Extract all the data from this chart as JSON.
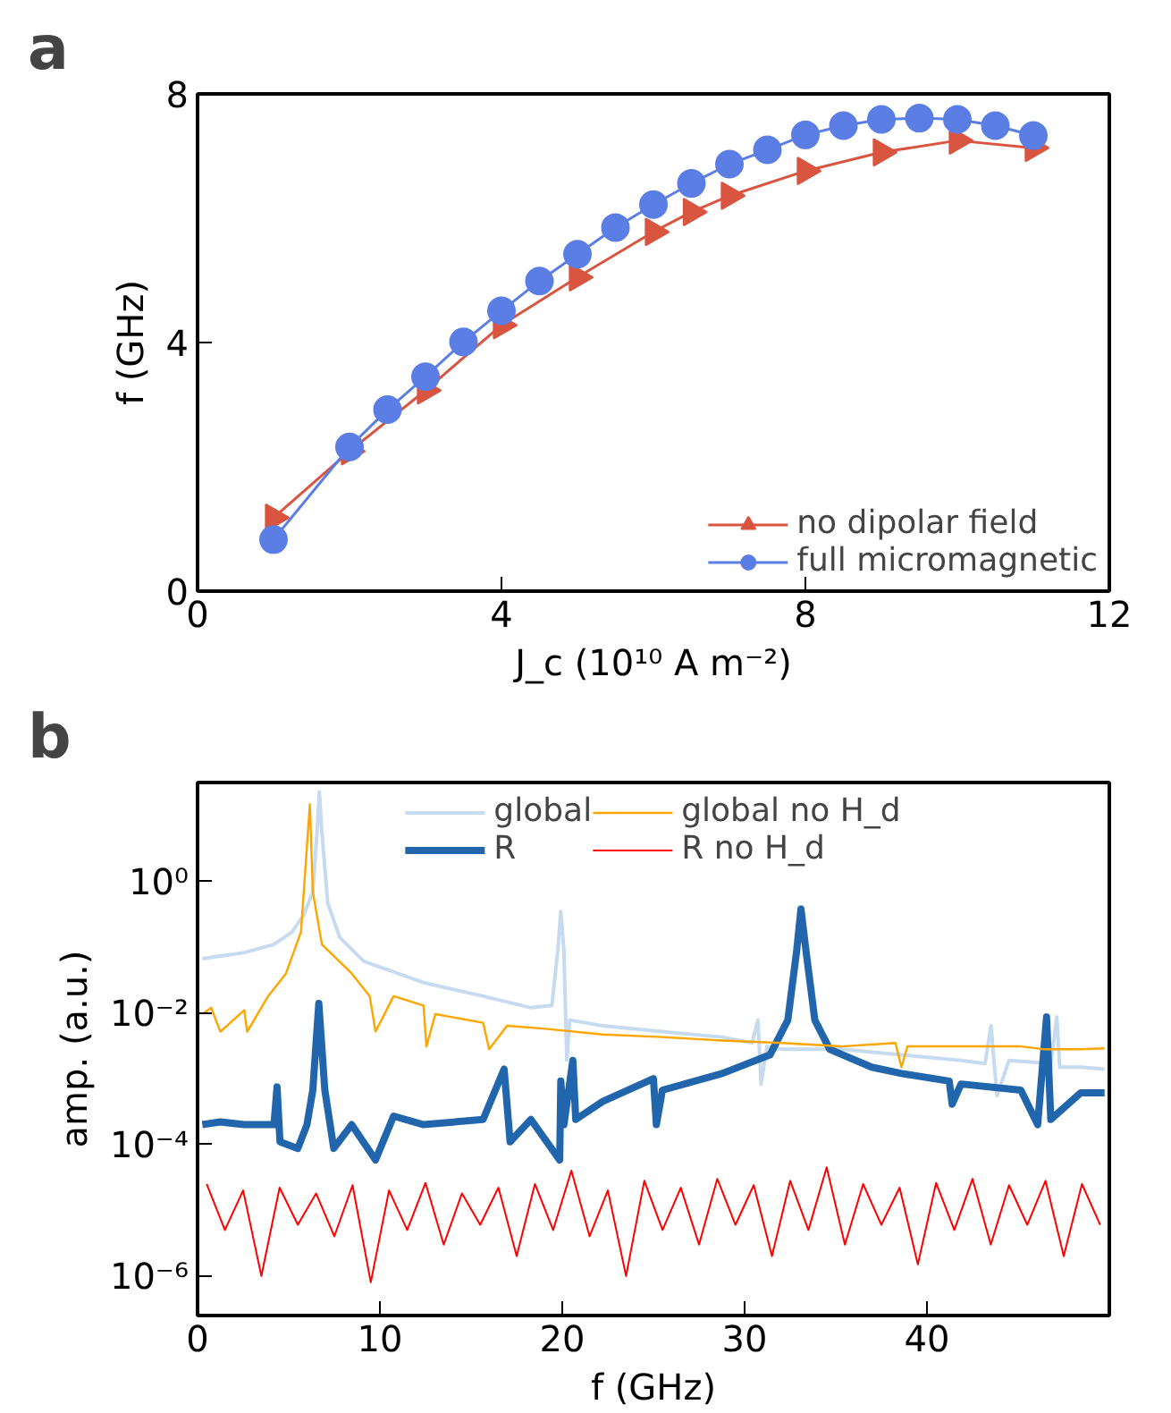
{
  "chart_data": [
    {
      "type": "line",
      "annotations": [
        "a"
      ],
      "xlabel": "J_c (10¹⁰ A m⁻²)",
      "ylabel": "f (GHz)",
      "xlim": [
        0,
        12
      ],
      "ylim": [
        0,
        8
      ],
      "xticks": [
        0,
        4,
        8,
        12
      ],
      "yticks": [
        0,
        4,
        8
      ],
      "grid": false,
      "legend": "bottom right",
      "series": [
        {
          "name": "no dipolar field",
          "color": "#d9553f",
          "marker": "triangle",
          "x": [
            1,
            2,
            3,
            4,
            5,
            6,
            6.5,
            7,
            8,
            9,
            10,
            11
          ],
          "values": [
            1.18,
            2.25,
            3.23,
            4.28,
            5.05,
            5.78,
            6.1,
            6.36,
            6.76,
            7.06,
            7.25,
            7.13
          ]
        },
        {
          "name": "full micromagnetic",
          "color": "#5b7ee5",
          "marker": "circle",
          "x": [
            1,
            2,
            2.5,
            3,
            3.5,
            4,
            4.5,
            5,
            5.5,
            6,
            6.5,
            7,
            7.5,
            8,
            8.5,
            9,
            9.5,
            10,
            10.5,
            11
          ],
          "values": [
            0.83,
            2.32,
            2.92,
            3.45,
            4.01,
            4.51,
            4.99,
            5.42,
            5.85,
            6.22,
            6.56,
            6.87,
            7.1,
            7.34,
            7.49,
            7.59,
            7.61,
            7.59,
            7.49,
            7.33
          ]
        }
      ]
    },
    {
      "type": "line",
      "annotations": [
        "b"
      ],
      "xlabel": "f (GHz)",
      "ylabel": "amp. (a.u.)",
      "log": "y",
      "xlim": [
        0,
        50
      ],
      "ylim": [
        2.5e-07,
        32
      ],
      "xticks": [
        0,
        10,
        20,
        30,
        40
      ],
      "yticks": [
        {
          "value": 1,
          "label": "10⁰"
        },
        {
          "value": 0.01,
          "label": "10⁻²"
        },
        {
          "value": 0.0001,
          "label": "10⁻⁴"
        },
        {
          "value": 1e-06,
          "label": "10⁻⁶"
        }
      ],
      "grid": false,
      "legend": "top",
      "series": [
        {
          "name": "global",
          "color": "#c6dbef",
          "x": [
            0.26,
            2.56,
            4.19,
            5.18,
            5.83,
            6.32,
            6.55,
            6.68,
            6.82,
            7.14,
            7.8,
            9.11,
            12.39,
            15.66,
            18.28,
            19.43,
            19.76,
            19.92,
            20.09,
            20.25,
            20.41,
            22.22,
            25.49,
            28.77,
            30.41,
            30.73,
            30.9,
            31.23,
            32.05,
            35.32,
            38.6,
            41.87,
            43.19,
            43.51,
            43.84,
            44.5,
            46.79,
            47.12,
            47.28,
            48.43,
            49.74
          ],
          "values": [
            0.067,
            0.083,
            0.11,
            0.17,
            0.31,
            0.7,
            5.5,
            23,
            5.5,
            0.47,
            0.14,
            0.061,
            0.029,
            0.018,
            0.012,
            0.013,
            0.091,
            0.35,
            0.091,
            0.0019,
            0.0078,
            0.0064,
            0.0052,
            0.0043,
            0.0035,
            0.0078,
            0.00083,
            0.0031,
            0.0028,
            0.0028,
            0.0023,
            0.0019,
            0.0017,
            0.0064,
            0.00055,
            0.0019,
            0.0017,
            0.0087,
            0.0015,
            0.0015,
            0.0014
          ]
        },
        {
          "name": "R",
          "color": "#2166ac",
          "x": [
            0.26,
            1.25,
            2.56,
            4.19,
            4.36,
            4.52,
            5.5,
            6.0,
            6.32,
            6.65,
            6.98,
            7.47,
            8.45,
            9.76,
            10.75,
            12.39,
            15.66,
            16.81,
            17.14,
            18.28,
            19.86,
            19.92,
            20.09,
            20.58,
            20.74,
            22.22,
            25.0,
            25.16,
            25.49,
            28.77,
            31.39,
            32.37,
            32.86,
            33.09,
            33.36,
            33.85,
            34.67,
            36.96,
            38.6,
            41.22,
            41.38,
            41.87,
            45.15,
            46.07,
            46.56,
            46.79,
            48.43,
            49.74
          ],
          "values": [
            0.0002,
            0.00022,
            0.0002,
            0.0002,
            0.00075,
            0.00011,
            8.7e-05,
            0.0002,
            0.00067,
            0.014,
            0.00067,
            8.7e-05,
            0.0002,
            5.8e-05,
            0.00027,
            0.0002,
            0.00024,
            0.0014,
            0.00011,
            0.00024,
            5.8e-05,
            0.00092,
            0.0002,
            0.0019,
            0.00024,
            0.00045,
            0.001,
            0.0002,
            0.00067,
            0.0012,
            0.0023,
            0.0078,
            0.091,
            0.38,
            0.091,
            0.0078,
            0.0028,
            0.0015,
            0.0012,
            0.00092,
            0.00041,
            0.00083,
            0.00067,
            0.0002,
            0.0087,
            0.00024,
            0.00061,
            0.00061
          ]
        },
        {
          "name": "global no H_d",
          "color": "#ffa500",
          "x": [
            0.26,
            0.75,
            1.25,
            2.56,
            2.72,
            3.87,
            4.85,
            5.67,
            6.16,
            6.32,
            6.82,
            8.45,
            9.44,
            9.76,
            10.75,
            12.39,
            12.55,
            13.04,
            15.66,
            15.99,
            16.97,
            18.94,
            22.22,
            25.49,
            28.77,
            32.05,
            35.32,
            38.27,
            38.6,
            38.93,
            41.87,
            45.15,
            46.46,
            48.43,
            49.74
          ],
          "values": [
            0.0096,
            0.012,
            0.0052,
            0.011,
            0.0052,
            0.018,
            0.04,
            0.17,
            15,
            0.7,
            0.11,
            0.04,
            0.018,
            0.0052,
            0.018,
            0.013,
            0.0031,
            0.0096,
            0.0071,
            0.0028,
            0.0064,
            0.0058,
            0.0047,
            0.0043,
            0.0038,
            0.0035,
            0.0031,
            0.0035,
            0.0015,
            0.0031,
            0.0031,
            0.0031,
            0.0028,
            0.0028,
            0.0029
          ]
        },
        {
          "name": "R no H_d",
          "color": "#ff0000",
          "x": [
            0.5,
            1.5,
            2.5,
            3.5,
            4.5,
            5.5,
            6.5,
            7.5,
            8.5,
            9.5,
            10.5,
            11.5,
            12.5,
            13.5,
            14.5,
            15.5,
            16.5,
            17.5,
            18.5,
            19.5,
            20.5,
            21.5,
            22.5,
            23.5,
            24.5,
            25.5,
            26.5,
            27.5,
            28.5,
            29.5,
            30.5,
            31.5,
            32.5,
            33.5,
            34.5,
            35.5,
            36.5,
            37.5,
            38.5,
            39.5,
            40.5,
            41.5,
            42.5,
            43.5,
            44.5,
            45.5,
            46.5,
            47.5,
            48.5,
            49.5
          ],
          "values": [
            2.5e-05,
            5e-06,
            2e-05,
            1e-06,
            2.2e-05,
            6e-06,
            1.8e-05,
            4e-06,
            2.4e-05,
            8e-07,
            2e-05,
            5e-06,
            2.6e-05,
            3e-06,
            1.8e-05,
            6e-06,
            2.2e-05,
            2e-06,
            2.5e-05,
            5e-06,
            4e-05,
            4e-06,
            2e-05,
            1e-06,
            2.8e-05,
            5e-06,
            2.2e-05,
            3e-06,
            3e-05,
            6e-06,
            2.4e-05,
            2e-06,
            2.8e-05,
            5e-06,
            4.5e-05,
            3e-06,
            2.5e-05,
            6e-06,
            2.2e-05,
            1.5e-06,
            2.6e-05,
            5e-06,
            3e-05,
            3e-06,
            2.4e-05,
            6e-06,
            2.8e-05,
            2e-06,
            2.5e-05,
            6e-06
          ]
        }
      ]
    }
  ]
}
